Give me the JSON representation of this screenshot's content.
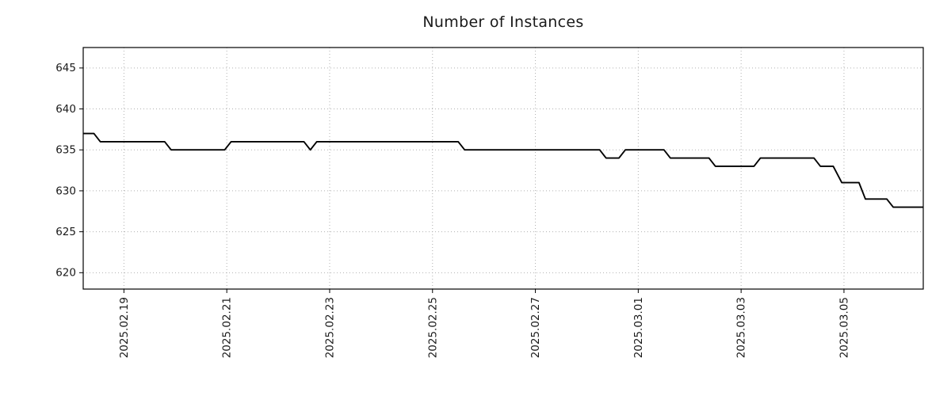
{
  "chart": {
    "title": "Number of Instances"
  },
  "chart_data": {
    "type": "line",
    "title": "Number of Instances",
    "xlabel": "",
    "ylabel": "",
    "grid": true,
    "legend_position": "none",
    "line_color": "#000000",
    "grid_color": "#b0b0b0",
    "text_color": "#1a1a1a",
    "ylim": [
      618,
      647.5
    ],
    "xlim": [
      "2025-02-18 05:00",
      "2025-03-06 13:00"
    ],
    "yticks": [
      620,
      625,
      630,
      635,
      640,
      645
    ],
    "xticks": [
      {
        "t": "2025-02-19 00:00",
        "label": "2025.02.19"
      },
      {
        "t": "2025-02-21 00:00",
        "label": "2025.02.21"
      },
      {
        "t": "2025-02-23 00:00",
        "label": "2025.02.23"
      },
      {
        "t": "2025-02-25 00:00",
        "label": "2025.02.25"
      },
      {
        "t": "2025-02-27 00:00",
        "label": "2025.02.27"
      },
      {
        "t": "2025-03-01 00:00",
        "label": "2025.03.01"
      },
      {
        "t": "2025-03-03 00:00",
        "label": "2025.03.03"
      },
      {
        "t": "2025-03-05 00:00",
        "label": "2025.03.05"
      }
    ],
    "series": [
      {
        "name": "instances",
        "points": [
          [
            "2025-02-18 05:00",
            637
          ],
          [
            "2025-02-18 10:00",
            637
          ],
          [
            "2025-02-18 13:00",
            636
          ],
          [
            "2025-02-19 19:00",
            636
          ],
          [
            "2025-02-19 22:00",
            635
          ],
          [
            "2025-02-20 23:00",
            635
          ],
          [
            "2025-02-21 02:00",
            636
          ],
          [
            "2025-02-22 12:00",
            636
          ],
          [
            "2025-02-22 15:00",
            635
          ],
          [
            "2025-02-22 18:00",
            636
          ],
          [
            "2025-02-25 12:00",
            636
          ],
          [
            "2025-02-25 15:00",
            635
          ],
          [
            "2025-02-28 06:00",
            635
          ],
          [
            "2025-02-28 09:00",
            634
          ],
          [
            "2025-02-28 15:00",
            634
          ],
          [
            "2025-02-28 18:00",
            635
          ],
          [
            "2025-03-01 12:00",
            635
          ],
          [
            "2025-03-01 15:00",
            634
          ],
          [
            "2025-03-02 09:00",
            634
          ],
          [
            "2025-03-02 12:00",
            633
          ],
          [
            "2025-03-03 06:00",
            633
          ],
          [
            "2025-03-03 09:00",
            634
          ],
          [
            "2025-03-04 10:00",
            634
          ],
          [
            "2025-03-04 13:00",
            633
          ],
          [
            "2025-03-04 19:00",
            633
          ],
          [
            "2025-03-04 23:00",
            631
          ],
          [
            "2025-03-05 07:00",
            631
          ],
          [
            "2025-03-05 10:00",
            629
          ],
          [
            "2025-03-05 20:00",
            629
          ],
          [
            "2025-03-05 23:00",
            628
          ],
          [
            "2025-03-06 13:00",
            628
          ]
        ]
      }
    ]
  }
}
